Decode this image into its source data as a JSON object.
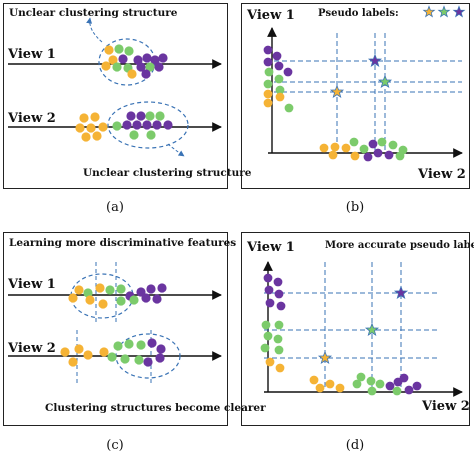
{
  "panels": {
    "a": {
      "caption": "(a)",
      "title": "Unclear clustering structure",
      "view1_label": "View 1",
      "view2_label": "View 2",
      "bottom_note": "Unclear clustering structure"
    },
    "b": {
      "caption": "(b)",
      "view1_label": "View 1",
      "view2_label": "View 2",
      "legend_label": "Pseudo labels:"
    },
    "c": {
      "caption": "(c)",
      "title": "Learning more discriminative features",
      "view1_label": "View 1",
      "view2_label": "View 2",
      "bottom_note": "Clustering structures become clearer"
    },
    "d": {
      "caption": "(d)",
      "view1_label": "View 1",
      "view2_label": "View 2",
      "title": "More accurate pseudo labels"
    }
  },
  "colors": {
    "orange": "#F5B335",
    "green": "#7CCB6B",
    "purple": "#6A35A0",
    "dash_blue": "#3A73B5",
    "axis": "#111111"
  }
}
